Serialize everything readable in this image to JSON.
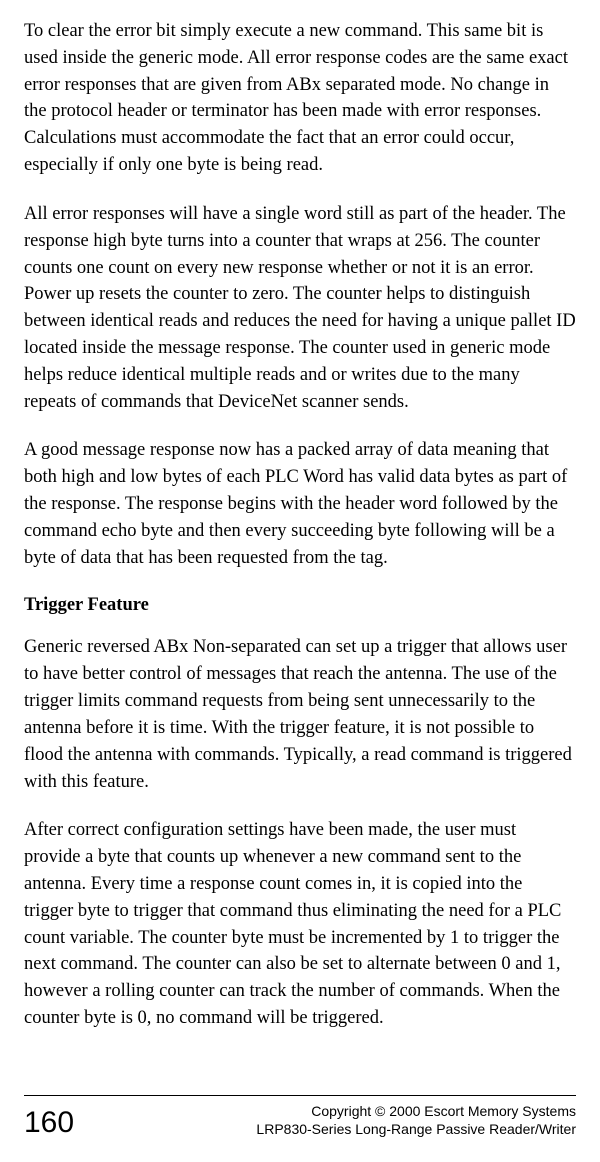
{
  "paragraphs": {
    "p1": "To clear the error bit simply execute a new command. This same bit is used inside the generic mode. All error response codes are the same exact error responses that are given from ABx separated mode. No change in the proto­col header or terminator has been made with error responses. Calculations must accommodate the fact that an error could occur, especially if only one byte is being read.",
    "p2": "All error responses will have a single word still as part of the header. The re­sponse high byte turns into a counter that wraps at 256. The counter counts one count on every new response whether or not it is an error. Power up re­sets the counter to zero. The counter helps to distinguish between identical reads and reduces the need for having a unique pallet ID located inside the message response. The counter used in generic mode helps reduce identical multiple reads and or writes due to the many repeats of commands that DeviceNet scanner sends.",
    "p3": "A good message response now has a packed array of data meaning that both high and low bytes of each PLC Word has valid data bytes as part of the response. The response begins with the header word followed by the com­mand echo byte and then every succeeding byte following will be a byte of data that has been requested from the tag.",
    "p4": "Generic reversed ABx Non-separated can set up a trigger that allows user to have better control of messages that reach the antenna. The use of the trigger limits command requests from being sent unnecessarily to the antenna be­fore it is time. With the trigger feature, it is not possible to flood the antenna with commands. Typically, a read command is triggered with this feature.",
    "p5": "After correct configuration settings have been made, the user must provide a byte that counts up whenever a new command sent to the antenna. Every time a response count comes in, it is copied into the trigger byte to trigger that command thus eliminating the need for a PLC count variable. The coun­ter byte must be incremented by 1 to trigger the next command. The counter can also be set to alternate between 0 and 1, however a rolling counter can track the number of commands. When the counter byte is 0, no command will be triggered."
  },
  "heading": "Trigger Feature",
  "footer": {
    "page_number": "160",
    "copyright": "Copyright © 2000 Escort Memory Systems",
    "product": "LRP830-Series Long-Range Passive Reader/Writer"
  }
}
